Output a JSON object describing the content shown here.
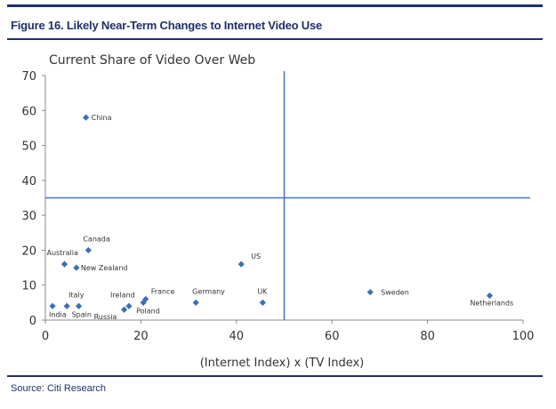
{
  "figure_title": "Figure 16. Likely Near-Term Changes to Internet Video Use",
  "source": "Source: Citi Research",
  "colors": {
    "brand": "#1f2f6b",
    "marker": "#3d6eb5",
    "divider": "#4472c4"
  },
  "chart_data": {
    "type": "scatter",
    "title": "Current Share of Video Over Web",
    "xlabel": "(Internet Index) x (TV Index)",
    "ylabel": "",
    "xlim": [
      0,
      100
    ],
    "ylim": [
      0,
      70
    ],
    "x_ticks": [
      "0",
      "20",
      "40",
      "60",
      "80",
      "100"
    ],
    "y_ticks": [
      "0",
      "10",
      "20",
      "30",
      "40",
      "50",
      "60",
      "70"
    ],
    "grid": false,
    "legend": "none",
    "divider_lines": {
      "x": 50,
      "y": 35
    },
    "points": [
      {
        "name": "China",
        "x": 8.5,
        "y": 58
      },
      {
        "name": "Canada",
        "x": 9,
        "y": 20
      },
      {
        "name": "Australia",
        "x": 4,
        "y": 16
      },
      {
        "name": "New Zealand",
        "x": 6.5,
        "y": 15
      },
      {
        "name": "US",
        "x": 41,
        "y": 16
      },
      {
        "name": "Italy",
        "x": 4.5,
        "y": 4
      },
      {
        "name": "India",
        "x": 1.5,
        "y": 4
      },
      {
        "name": "Spain",
        "x": 7,
        "y": 4
      },
      {
        "name": "Ireland",
        "x": 17.5,
        "y": 4
      },
      {
        "name": "Russia",
        "x": 16.5,
        "y": 3
      },
      {
        "name": "France",
        "x": 21,
        "y": 6
      },
      {
        "name": "Poland",
        "x": 20.5,
        "y": 5
      },
      {
        "name": "Germany",
        "x": 31.5,
        "y": 5
      },
      {
        "name": "UK",
        "x": 45.5,
        "y": 5
      },
      {
        "name": "Sweden",
        "x": 68,
        "y": 8
      },
      {
        "name": "Netherlands",
        "x": 93,
        "y": 7
      }
    ]
  }
}
